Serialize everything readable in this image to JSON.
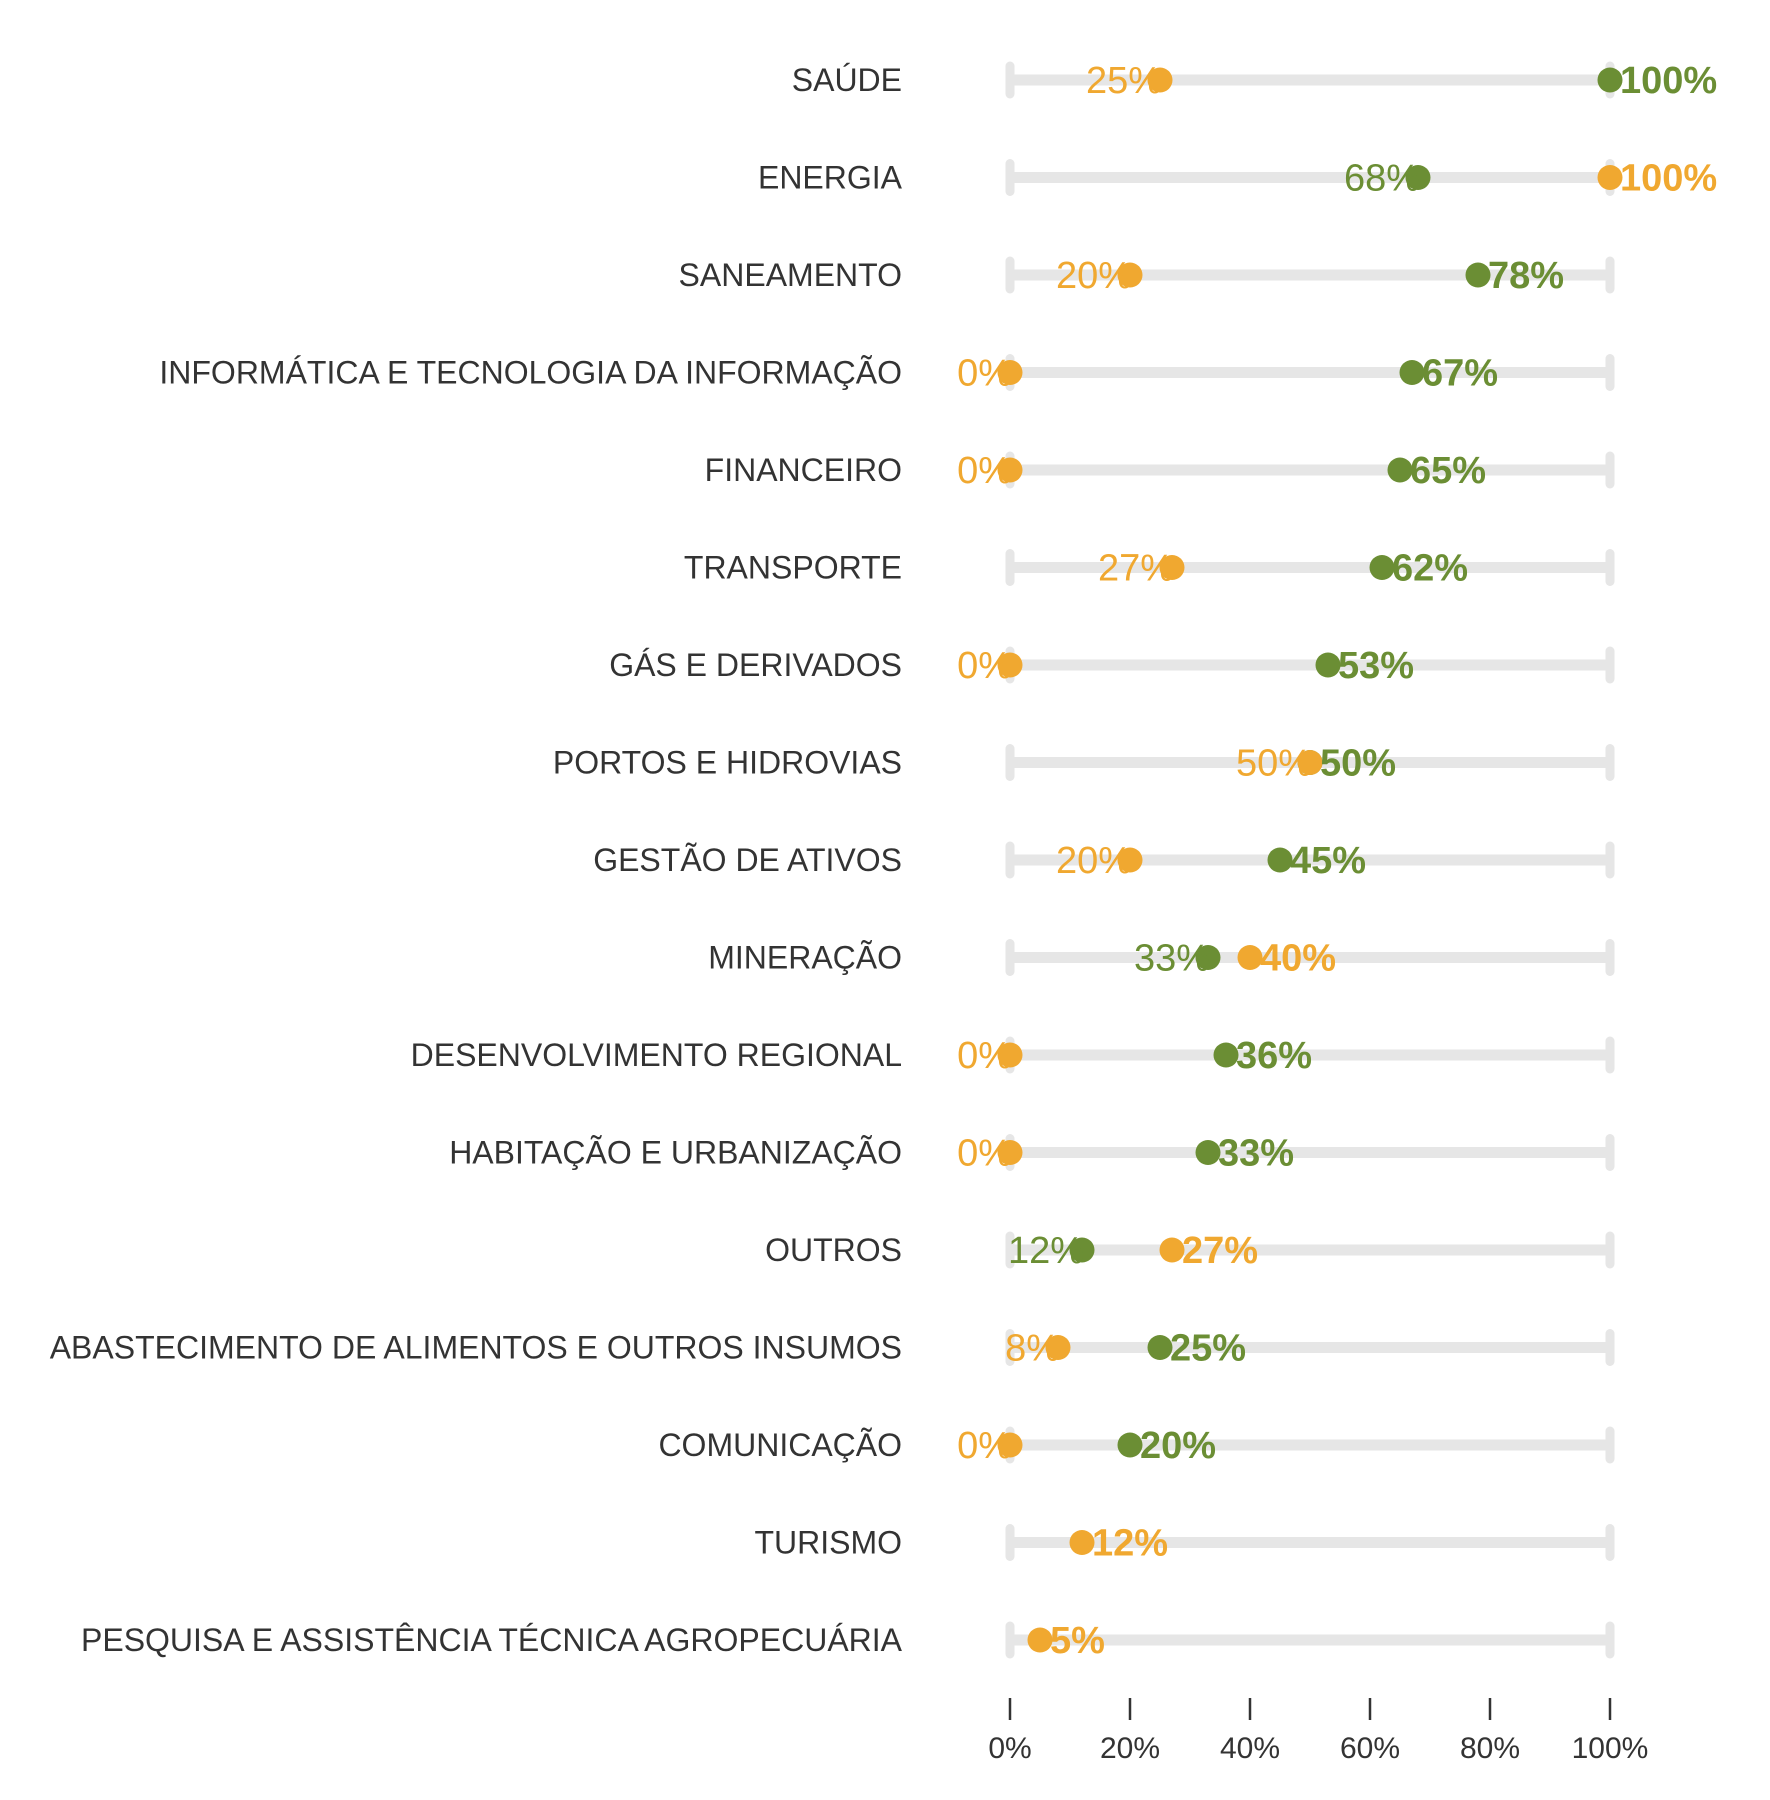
{
  "chart_data": {
    "type": "dumbbell",
    "colors": {
      "green": "#6b8e34",
      "orange": "#f0a830",
      "track": "#e6e6e6",
      "text": "#333333"
    },
    "xlim": [
      0,
      100
    ],
    "x_ticks": [
      0,
      20,
      40,
      60,
      80,
      100
    ],
    "x_tick_labels": [
      "0%",
      "20%",
      "40%",
      "60%",
      "80%",
      "100%"
    ],
    "series": [
      {
        "color": "green"
      },
      {
        "color": "orange"
      }
    ],
    "categories": [
      "SAÚDE",
      "ENERGIA",
      "SANEAMENTO",
      "INFORMÁTICA E TECNOLOGIA DA INFORMAÇÃO",
      "FINANCEIRO",
      "TRANSPORTE",
      "GÁS E DERIVADOS",
      "PORTOS E HIDROVIAS",
      "GESTÃO DE ATIVOS",
      "MINERAÇÃO",
      "DESENVOLVIMENTO REGIONAL",
      "HABITAÇÃO E URBANIZAÇÃO",
      "OUTROS",
      "ABASTECIMENTO DE ALIMENTOS E OUTROS INSUMOS",
      "COMUNICAÇÃO",
      "TURISMO",
      "PESQUISA E ASSISTÊNCIA TÉCNICA AGROPECUÁRIA"
    ],
    "rows": [
      {
        "green": 100,
        "green_label": "100%",
        "orange": 25,
        "orange_label": "25%"
      },
      {
        "green": 68,
        "green_label": "68%",
        "orange": 100,
        "orange_label": "100%"
      },
      {
        "green": 78,
        "green_label": "78%",
        "orange": 20,
        "orange_label": "20%"
      },
      {
        "green": 67,
        "green_label": "67%",
        "orange": 0,
        "orange_label": "0%"
      },
      {
        "green": 65,
        "green_label": "65%",
        "orange": 0,
        "orange_label": "0%"
      },
      {
        "green": 62,
        "green_label": "62%",
        "orange": 27,
        "orange_label": "27%"
      },
      {
        "green": 53,
        "green_label": "53%",
        "orange": 0,
        "orange_label": "0%"
      },
      {
        "green": 50,
        "green_label": "50%",
        "orange": 50,
        "orange_label": "50%"
      },
      {
        "green": 45,
        "green_label": "45%",
        "orange": 20,
        "orange_label": "20%"
      },
      {
        "green": 33,
        "green_label": "33%",
        "orange": 40,
        "orange_label": "40%"
      },
      {
        "green": 36,
        "green_label": "36%",
        "orange": 0,
        "orange_label": "0%"
      },
      {
        "green": 33,
        "green_label": "33%",
        "orange": 0,
        "orange_label": "0%"
      },
      {
        "green": 12,
        "green_label": "12%",
        "orange": 27,
        "orange_label": "27%"
      },
      {
        "green": 25,
        "green_label": "25%",
        "orange": 8,
        "orange_label": "8%"
      },
      {
        "green": 20,
        "green_label": "20%",
        "orange": 0,
        "orange_label": "0%"
      },
      {
        "green": null,
        "green_label": "",
        "orange": 12,
        "orange_label": "12%"
      },
      {
        "green": null,
        "green_label": "",
        "orange": 5,
        "orange_label": "5%"
      }
    ]
  }
}
